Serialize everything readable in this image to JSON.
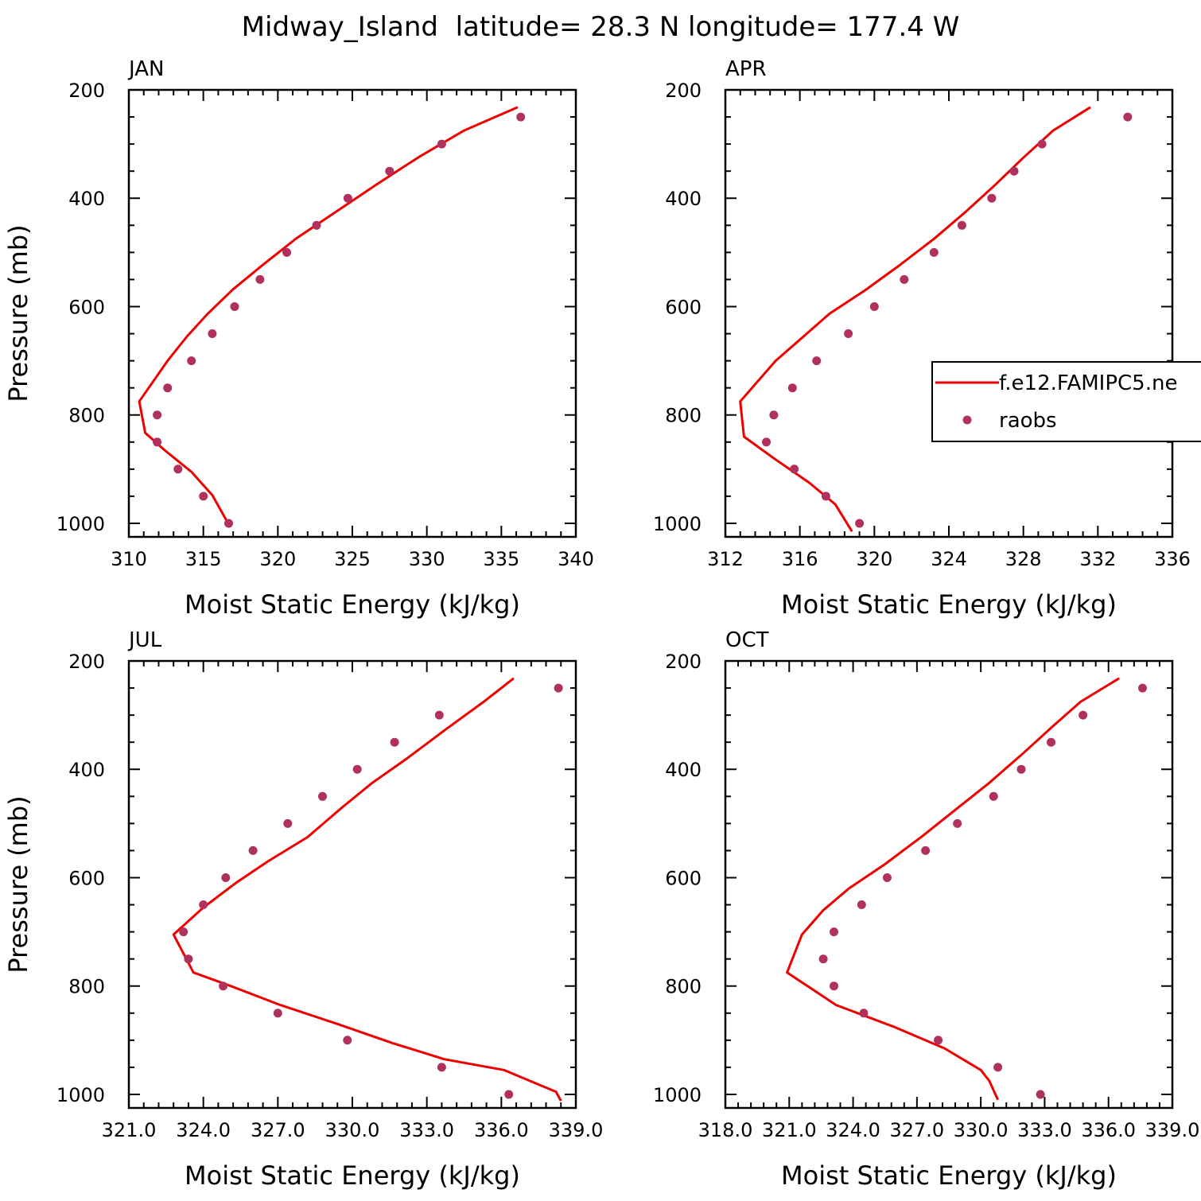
{
  "figure_title": "Midway_Island  latitude= 28.3 N longitude= 177.4 W",
  "colors": {
    "model_line": "#ee0000",
    "obs_marker": "#b0305e",
    "axes": "#000000"
  },
  "legend": {
    "items": [
      {
        "label": "f.e12.FAMIPC5.ne",
        "style": "line",
        "color": "#ee0000"
      },
      {
        "label": "raobs",
        "style": "marker",
        "color": "#b0305e"
      }
    ]
  },
  "chart_data": [
    {
      "type": "line",
      "title": "JAN",
      "xlabel": "Moist Static Energy (kJ/kg)",
      "ylabel": "Pressure (mb)",
      "xlim": [
        310,
        340
      ],
      "ylim": [
        1025,
        200
      ],
      "x_ticks": [
        310,
        315,
        320,
        325,
        330,
        335,
        340
      ],
      "x_tick_labels": [
        "310",
        "315",
        "320",
        "325",
        "330",
        "335",
        "340"
      ],
      "y_ticks": [
        200,
        400,
        600,
        800,
        1000
      ],
      "y_tick_labels": [
        "200",
        "400",
        "600",
        "800",
        "1000"
      ],
      "series": [
        {
          "style": "line",
          "points": [
            [
              336.1,
              232
            ],
            [
              332.5,
              275
            ],
            [
              329.4,
              325
            ],
            [
              326.6,
              375
            ],
            [
              323.9,
              425
            ],
            [
              321.2,
              475
            ],
            [
              318.9,
              525
            ],
            [
              317.0,
              568
            ],
            [
              315.3,
              613
            ],
            [
              313.9,
              655
            ],
            [
              312.6,
              700
            ],
            [
              310.7,
              775
            ],
            [
              311.1,
              833
            ],
            [
              312.4,
              865
            ],
            [
              314.2,
              905
            ],
            [
              315.6,
              948
            ],
            [
              316.8,
              1007
            ]
          ]
        },
        {
          "style": "marker",
          "points": [
            [
              336.3,
              250
            ],
            [
              331.0,
              300
            ],
            [
              327.5,
              350
            ],
            [
              324.7,
              400
            ],
            [
              322.6,
              450
            ],
            [
              320.6,
              500
            ],
            [
              318.8,
              550
            ],
            [
              317.1,
              600
            ],
            [
              315.6,
              650
            ],
            [
              314.2,
              700
            ],
            [
              312.6,
              750
            ],
            [
              311.9,
              800
            ],
            [
              311.9,
              850
            ],
            [
              313.3,
              900
            ],
            [
              315.0,
              950
            ],
            [
              316.7,
              1000
            ]
          ]
        }
      ]
    },
    {
      "type": "line",
      "title": "APR",
      "xlabel": "Moist Static Energy (kJ/kg)",
      "ylabel": "",
      "xlim": [
        312,
        336
      ],
      "ylim": [
        1025,
        200
      ],
      "x_ticks": [
        312,
        316,
        320,
        324,
        328,
        332,
        336
      ],
      "x_tick_labels": [
        "312",
        "316",
        "320",
        "324",
        "328",
        "332",
        "336"
      ],
      "y_ticks": [
        200,
        400,
        600,
        800,
        1000
      ],
      "y_tick_labels": [
        "200",
        "400",
        "600",
        "800",
        "1000"
      ],
      "series": [
        {
          "style": "line",
          "points": [
            [
              331.6,
              232
            ],
            [
              329.6,
              275
            ],
            [
              328.0,
              325
            ],
            [
              326.5,
              375
            ],
            [
              324.9,
              425
            ],
            [
              323.2,
              475
            ],
            [
              321.3,
              525
            ],
            [
              319.5,
              570
            ],
            [
              317.6,
              613
            ],
            [
              316.2,
              655
            ],
            [
              314.7,
              700
            ],
            [
              312.8,
              775
            ],
            [
              313.0,
              840
            ],
            [
              314.6,
              880
            ],
            [
              316.5,
              925
            ],
            [
              317.9,
              965
            ],
            [
              318.8,
              1015
            ]
          ]
        },
        {
          "style": "marker",
          "points": [
            [
              333.6,
              250
            ],
            [
              329.0,
              300
            ],
            [
              327.5,
              350
            ],
            [
              326.3,
              400
            ],
            [
              324.7,
              450
            ],
            [
              323.2,
              500
            ],
            [
              321.6,
              550
            ],
            [
              320.0,
              600
            ],
            [
              318.6,
              650
            ],
            [
              316.9,
              700
            ],
            [
              315.6,
              750
            ],
            [
              314.6,
              800
            ],
            [
              314.2,
              850
            ],
            [
              315.7,
              900
            ],
            [
              317.4,
              950
            ],
            [
              319.2,
              1000
            ]
          ]
        }
      ]
    },
    {
      "type": "line",
      "title": "JUL",
      "xlabel": "Moist Static Energy (kJ/kg)",
      "ylabel": "Pressure (mb)",
      "xlim": [
        321,
        339
      ],
      "ylim": [
        1025,
        200
      ],
      "x_ticks": [
        321,
        324,
        327,
        330,
        333,
        336,
        339
      ],
      "x_tick_labels": [
        "321.0",
        "324.0",
        "327.0",
        "330.0",
        "333.0",
        "336.0",
        "339.0"
      ],
      "y_ticks": [
        200,
        400,
        600,
        800,
        1000
      ],
      "y_tick_labels": [
        "200",
        "400",
        "600",
        "800",
        "1000"
      ],
      "series": [
        {
          "style": "line",
          "points": [
            [
              336.5,
              232
            ],
            [
              335.3,
              275
            ],
            [
              333.8,
              325
            ],
            [
              332.2,
              380
            ],
            [
              330.8,
              425
            ],
            [
              329.6,
              470
            ],
            [
              328.2,
              525
            ],
            [
              326.6,
              570
            ],
            [
              325.3,
              610
            ],
            [
              324.0,
              655
            ],
            [
              322.8,
              705
            ],
            [
              323.6,
              775
            ],
            [
              325.1,
              800
            ],
            [
              327.1,
              835
            ],
            [
              329.4,
              870
            ],
            [
              331.6,
              905
            ],
            [
              333.7,
              935
            ],
            [
              336.1,
              955
            ],
            [
              337.4,
              980
            ],
            [
              338.2,
              995
            ],
            [
              338.4,
              1012
            ]
          ]
        },
        {
          "style": "marker",
          "points": [
            [
              338.3,
              250
            ],
            [
              333.5,
              300
            ],
            [
              331.7,
              350
            ],
            [
              330.2,
              400
            ],
            [
              328.8,
              450
            ],
            [
              327.4,
              500
            ],
            [
              326.0,
              550
            ],
            [
              324.9,
              600
            ],
            [
              324.0,
              650
            ],
            [
              323.2,
              700
            ],
            [
              323.4,
              750
            ],
            [
              324.8,
              800
            ],
            [
              327.0,
              850
            ],
            [
              329.8,
              900
            ],
            [
              333.6,
              950
            ],
            [
              336.3,
              1000
            ]
          ]
        }
      ]
    },
    {
      "type": "line",
      "title": "OCT",
      "xlabel": "Moist Static Energy (kJ/kg)",
      "ylabel": "",
      "xlim": [
        318,
        339
      ],
      "ylim": [
        1025,
        200
      ],
      "x_ticks": [
        318,
        321,
        324,
        327,
        330,
        333,
        336,
        339
      ],
      "x_tick_labels": [
        "318.0",
        "321.0",
        "324.0",
        "327.0",
        "330.0",
        "333.0",
        "336.0",
        "339.0"
      ],
      "y_ticks": [
        200,
        400,
        600,
        800,
        1000
      ],
      "y_tick_labels": [
        "200",
        "400",
        "600",
        "800",
        "1000"
      ],
      "series": [
        {
          "style": "line",
          "points": [
            [
              336.5,
              232
            ],
            [
              334.7,
              275
            ],
            [
              333.4,
              320
            ],
            [
              332.0,
              370
            ],
            [
              330.4,
              425
            ],
            [
              328.8,
              475
            ],
            [
              327.2,
              525
            ],
            [
              325.5,
              575
            ],
            [
              323.8,
              620
            ],
            [
              322.6,
              660
            ],
            [
              321.6,
              705
            ],
            [
              320.9,
              775
            ],
            [
              323.2,
              835
            ],
            [
              325.9,
              875
            ],
            [
              328.3,
              915
            ],
            [
              330.0,
              955
            ],
            [
              330.4,
              975
            ],
            [
              330.8,
              1010
            ]
          ]
        },
        {
          "style": "marker",
          "points": [
            [
              337.6,
              250
            ],
            [
              334.8,
              300
            ],
            [
              333.3,
              350
            ],
            [
              331.9,
              400
            ],
            [
              330.6,
              450
            ],
            [
              328.9,
              500
            ],
            [
              327.4,
              550
            ],
            [
              325.6,
              600
            ],
            [
              324.4,
              650
            ],
            [
              323.1,
              700
            ],
            [
              322.6,
              750
            ],
            [
              323.1,
              800
            ],
            [
              324.5,
              850
            ],
            [
              328.0,
              900
            ],
            [
              330.8,
              950
            ],
            [
              332.8,
              1000
            ]
          ]
        }
      ]
    }
  ]
}
